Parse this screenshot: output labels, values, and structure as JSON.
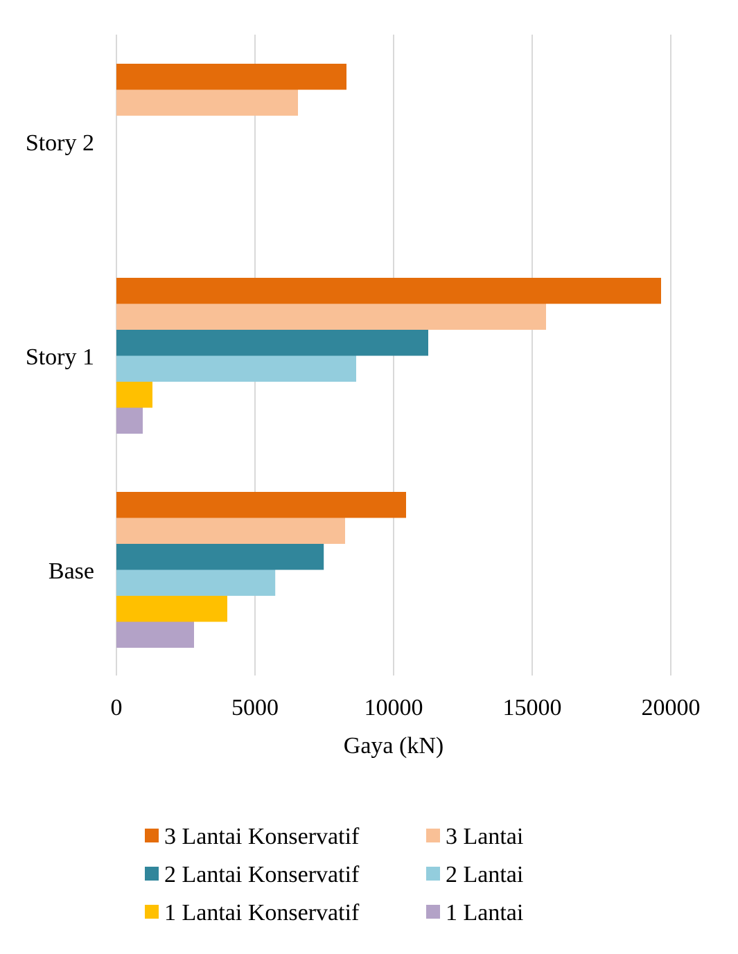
{
  "chart_data": {
    "type": "bar",
    "orientation": "horizontal",
    "title": "",
    "xlabel": "Gaya (kN)",
    "ylabel": "",
    "xlim": [
      0,
      20000
    ],
    "x_ticks": [
      0,
      5000,
      10000,
      15000,
      20000
    ],
    "x_tick_labels": [
      "0",
      "5000",
      "10000",
      "15000",
      "20000"
    ],
    "grid": true,
    "legend_position": "bottom",
    "categories": [
      "Story 2",
      "Story 1",
      "Base"
    ],
    "series": [
      {
        "name": "3 Lantai Konservatif",
        "color": "#E46C0A",
        "values": [
          8300,
          19650,
          10450
        ]
      },
      {
        "name": "3 Lantai",
        "color": "#F9C096",
        "values": [
          6550,
          15500,
          8250
        ]
      },
      {
        "name": "2 Lantai Konservatif",
        "color": "#31869B",
        "values": [
          null,
          11250,
          7480
        ]
      },
      {
        "name": "2 Lantai",
        "color": "#93CDDD",
        "values": [
          null,
          8650,
          5730
        ]
      },
      {
        "name": "1 Lantai Konservatif",
        "color": "#FFC000",
        "values": [
          null,
          1300,
          4000
        ]
      },
      {
        "name": "1 Lantai",
        "color": "#B3A2C7",
        "values": [
          null,
          950,
          2800
        ]
      }
    ],
    "legend_order": [
      "3 Lantai Konservatif",
      "3 Lantai",
      "2 Lantai Konservatif",
      "2 Lantai",
      "1 Lantai Konservatif",
      "1 Lantai"
    ]
  }
}
